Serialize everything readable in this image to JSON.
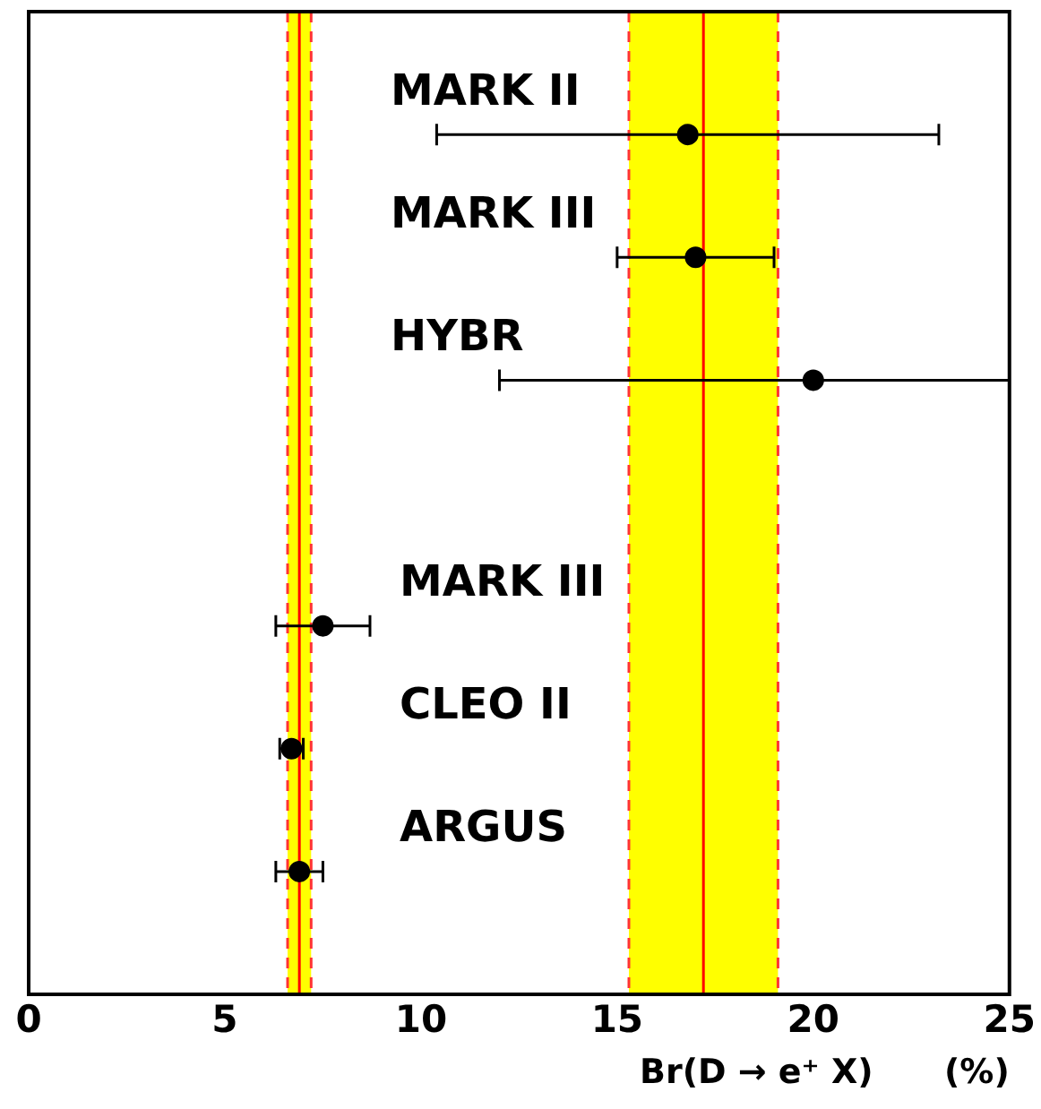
{
  "chart_data": {
    "type": "scatter",
    "orientation": "horizontal",
    "xlabel": "Br(D → e⁺ X)      (%)",
    "categories": [
      "MARK II",
      "MARK III",
      "HYBR",
      null,
      "MARK III",
      "CLEO II",
      "ARGUS"
    ],
    "values": [
      16.8,
      17.0,
      20.0,
      null,
      7.5,
      6.7,
      6.9
    ],
    "errors": [
      6.4,
      2.0,
      [
        12,
        25
      ],
      null,
      1.2,
      0.3,
      0.6
    ],
    "color": "#000000",
    "marker": "circle",
    "xlim": [
      0,
      25
    ],
    "xticks": [
      0,
      5,
      10,
      15,
      20,
      25
    ],
    "bands": [
      {
        "axis": "x",
        "from": 6.6,
        "to": 7.2,
        "color": "#ffff00"
      },
      {
        "axis": "x",
        "from": 15.3,
        "to": 19.1,
        "color": "#ffff00"
      }
    ],
    "ref_lines": [
      {
        "axis": "x",
        "value": 6.9,
        "color": "#ff0000"
      },
      {
        "axis": "x",
        "value": 17.2,
        "color": "#ff0000"
      },
      {
        "axis": "x",
        "value": 6.6,
        "color": "#ff3333",
        "line_style": "dashed"
      },
      {
        "axis": "x",
        "value": 7.2,
        "color": "#ff3333",
        "line_style": "dashed"
      },
      {
        "axis": "x",
        "value": 15.3,
        "color": "#ff3333",
        "line_style": "dashed"
      },
      {
        "axis": "x",
        "value": 19.1,
        "color": "#ff3333",
        "line_style": "dashed"
      }
    ],
    "tick_labels": "x",
    "grid": false,
    "legend": false
  }
}
